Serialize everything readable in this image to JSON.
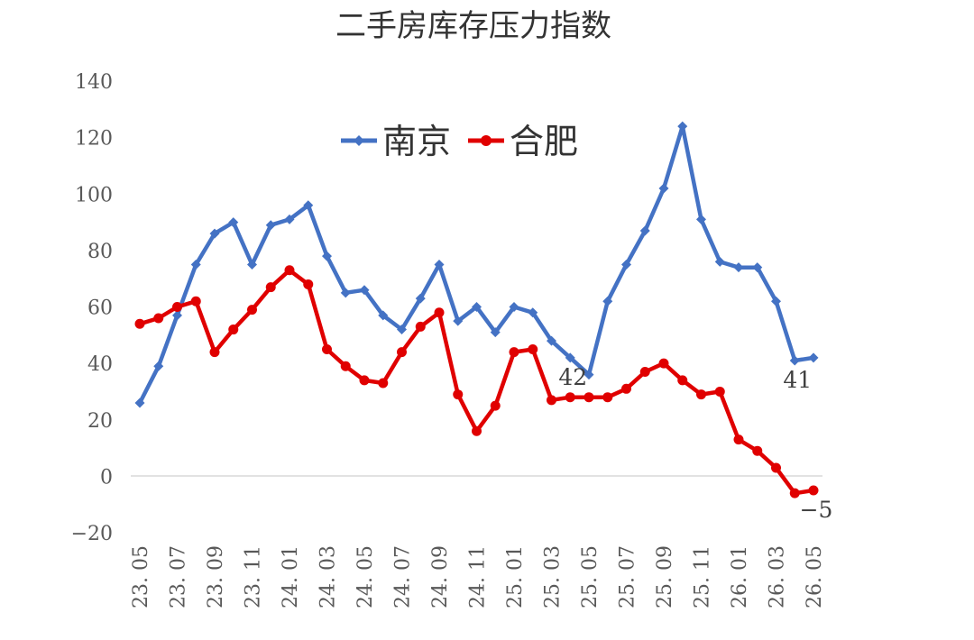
{
  "chart_data": {
    "type": "line",
    "title": "二手房库存压力指数",
    "xlabel": "",
    "ylabel": "",
    "ylim": [
      -20,
      140
    ],
    "yticks": [
      "140",
      "120",
      "100",
      "80",
      "60",
      "40",
      "20",
      "0",
      "−20"
    ],
    "x_tick_labels": [
      "23. 05",
      "23. 07",
      "23. 09",
      "23. 11",
      "24. 01",
      "24. 03",
      "24. 05",
      "24. 07",
      "24. 09",
      "24. 11",
      "25. 01",
      "25. 03",
      "25. 05",
      "25. 07",
      "25. 09",
      "25. 11",
      "26. 01",
      "26. 03",
      "26. 05"
    ],
    "x": [
      "23.05",
      "23.06",
      "23.07",
      "23.08",
      "23.09",
      "23.10",
      "23.11",
      "23.12",
      "24.01",
      "24.02",
      "24.03",
      "24.04",
      "24.05",
      "24.06",
      "24.07",
      "24.08",
      "24.09",
      "24.10",
      "24.11",
      "24.12",
      "25.01",
      "25.02",
      "25.03",
      "25.04",
      "25.05",
      "25.06",
      "25.07",
      "25.08",
      "25.09",
      "25.10",
      "25.11",
      "25.12",
      "26.01",
      "26.02",
      "26.03",
      "26.04",
      "26.05"
    ],
    "series": [
      {
        "name": "南京",
        "color": "#4472C4",
        "marker": "diamond",
        "values": [
          26,
          39,
          57,
          75,
          86,
          90,
          75,
          89,
          91,
          96,
          78,
          65,
          66,
          57,
          52,
          63,
          75,
          55,
          60,
          51,
          60,
          58,
          48,
          42,
          36,
          62,
          75,
          87,
          102,
          124,
          91,
          76,
          74,
          74,
          62,
          41,
          42
        ]
      },
      {
        "name": "合肥",
        "color": "#E00000",
        "marker": "circle",
        "values": [
          54,
          56,
          60,
          62,
          44,
          52,
          59,
          67,
          73,
          68,
          45,
          39,
          34,
          33,
          44,
          53,
          58,
          29,
          16,
          25,
          44,
          45,
          27,
          28,
          28,
          28,
          31,
          37,
          40,
          34,
          29,
          30,
          13,
          9,
          3,
          -6,
          -5
        ]
      }
    ],
    "annotations": [
      {
        "text": "42",
        "series": "南京",
        "x": "25.04"
      },
      {
        "text": "41",
        "series": "南京",
        "x": "26.04"
      },
      {
        "text": "−5",
        "series": "合肥",
        "x": "26.05"
      }
    ],
    "legend": {
      "position": "top-center"
    },
    "grid": false
  }
}
